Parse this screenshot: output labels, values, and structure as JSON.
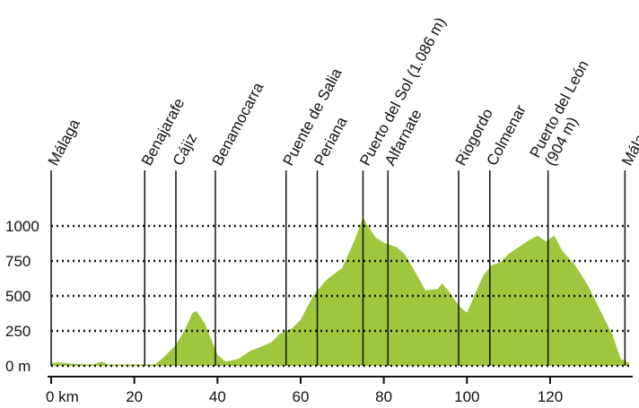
{
  "chart_data": {
    "type": "area",
    "color": "#9fc73d",
    "x": [
      0,
      2,
      5,
      10,
      12,
      14,
      20,
      25,
      27,
      30,
      32,
      34,
      35,
      37,
      40,
      42,
      45,
      48,
      50,
      53,
      55,
      58,
      60,
      63,
      66,
      70,
      73,
      75,
      76,
      78,
      80,
      83,
      85,
      87,
      90,
      93,
      94,
      96,
      98,
      100,
      102,
      104,
      106,
      108,
      110,
      113,
      115,
      117,
      119,
      121,
      123,
      126,
      129,
      132,
      135,
      137,
      139
    ],
    "values": [
      20,
      25,
      15,
      10,
      30,
      10,
      10,
      10,
      60,
      150,
      250,
      380,
      390,
      300,
      80,
      30,
      50,
      110,
      130,
      170,
      230,
      270,
      330,
      500,
      610,
      700,
      900,
      1060,
      1010,
      920,
      880,
      850,
      800,
      700,
      540,
      550,
      590,
      520,
      430,
      380,
      520,
      650,
      720,
      740,
      800,
      860,
      900,
      930,
      890,
      930,
      820,
      720,
      580,
      400,
      220,
      50,
      20
    ],
    "xlim": [
      0,
      139
    ],
    "ylim": [
      0,
      1000
    ],
    "xticks": [
      {
        "value": 0,
        "label": "0 km"
      },
      20,
      40,
      60,
      80,
      100,
      120
    ],
    "yticks": [
      {
        "value": 0,
        "label": "0 m"
      },
      250,
      500,
      750,
      1000
    ],
    "grid": true,
    "annotations": [
      {
        "x": 0,
        "lines": [
          "Málaga"
        ]
      },
      {
        "x": 22.5,
        "lines": [
          "Benajarafe"
        ]
      },
      {
        "x": 30,
        "lines": [
          "Cájiz"
        ]
      },
      {
        "x": 39.5,
        "lines": [
          "Benamocarra"
        ]
      },
      {
        "x": 56.5,
        "lines": [
          "Puente de Salia"
        ]
      },
      {
        "x": 64,
        "lines": [
          "Periana"
        ]
      },
      {
        "x": 75,
        "lines": [
          "Puerto del Sol (1.086 m)"
        ]
      },
      {
        "x": 81,
        "lines": [
          "Alfarnate"
        ]
      },
      {
        "x": 98,
        "lines": [
          "Riogordo"
        ]
      },
      {
        "x": 105.5,
        "lines": [
          "Colmenar"
        ]
      },
      {
        "x": 119.5,
        "lines": [
          "Puerto del León",
          "(904 m)"
        ]
      },
      {
        "x": 138,
        "lines": [
          "Málaga"
        ]
      }
    ]
  }
}
